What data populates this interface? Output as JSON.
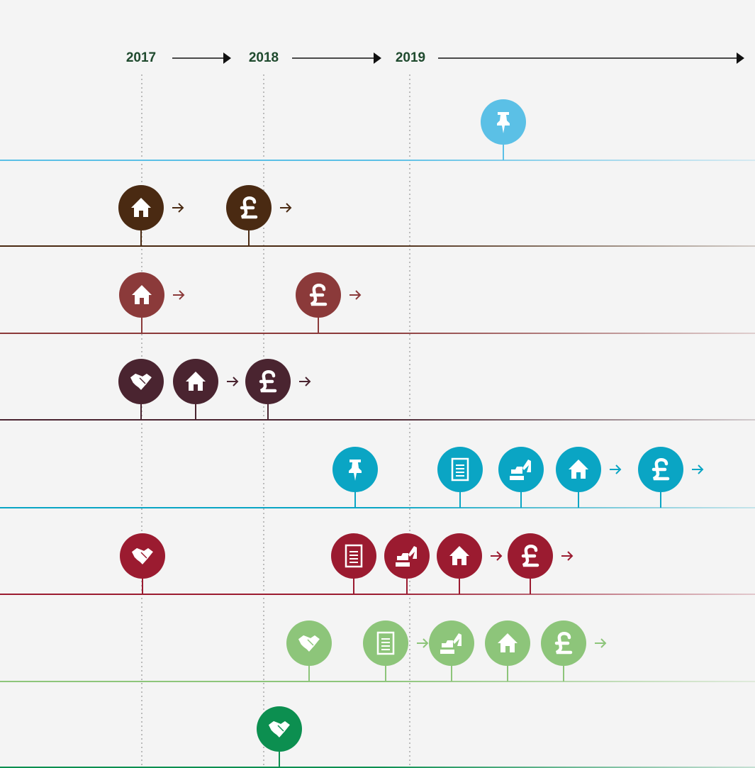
{
  "timeline": {
    "years": [
      "2017",
      "2018",
      "2019"
    ]
  }
}
